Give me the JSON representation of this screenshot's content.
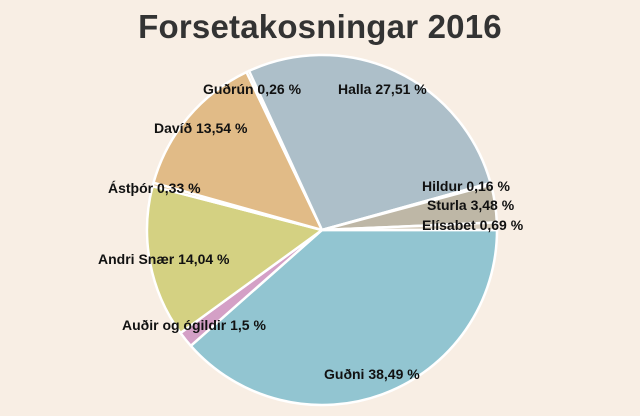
{
  "chart_data": {
    "type": "pie",
    "title": "Forsetakosningar 2016",
    "slices": [
      {
        "label": "Guðni 38,49 %",
        "value": 38.49,
        "color": "#92c5d1"
      },
      {
        "label": "Auðir og ógildir 1,5 %",
        "value": 1.5,
        "color": "#d4a0c6"
      },
      {
        "label": "Andri Snær 14,04 %",
        "value": 14.04,
        "color": "#d4d182"
      },
      {
        "label": "Ástþór 0,33 %",
        "value": 0.33,
        "color": "#e7c99a"
      },
      {
        "label": "Davíð 13,54 %",
        "value": 13.54,
        "color": "#e1bb87"
      },
      {
        "label": "Guðrún 0,26 %",
        "value": 0.26,
        "color": "#d6c7b0"
      },
      {
        "label": "Halla 27,51 %",
        "value": 27.51,
        "color": "#adbfc9"
      },
      {
        "label": "Hildur 0,16 %",
        "value": 0.16,
        "color": "#cfc8bb"
      },
      {
        "label": "Sturla 3,48 %",
        "value": 3.48,
        "color": "#beb7a6"
      },
      {
        "label": "Elísabet 0,69 %",
        "value": 0.69,
        "color": "#d9cfbf"
      }
    ]
  }
}
